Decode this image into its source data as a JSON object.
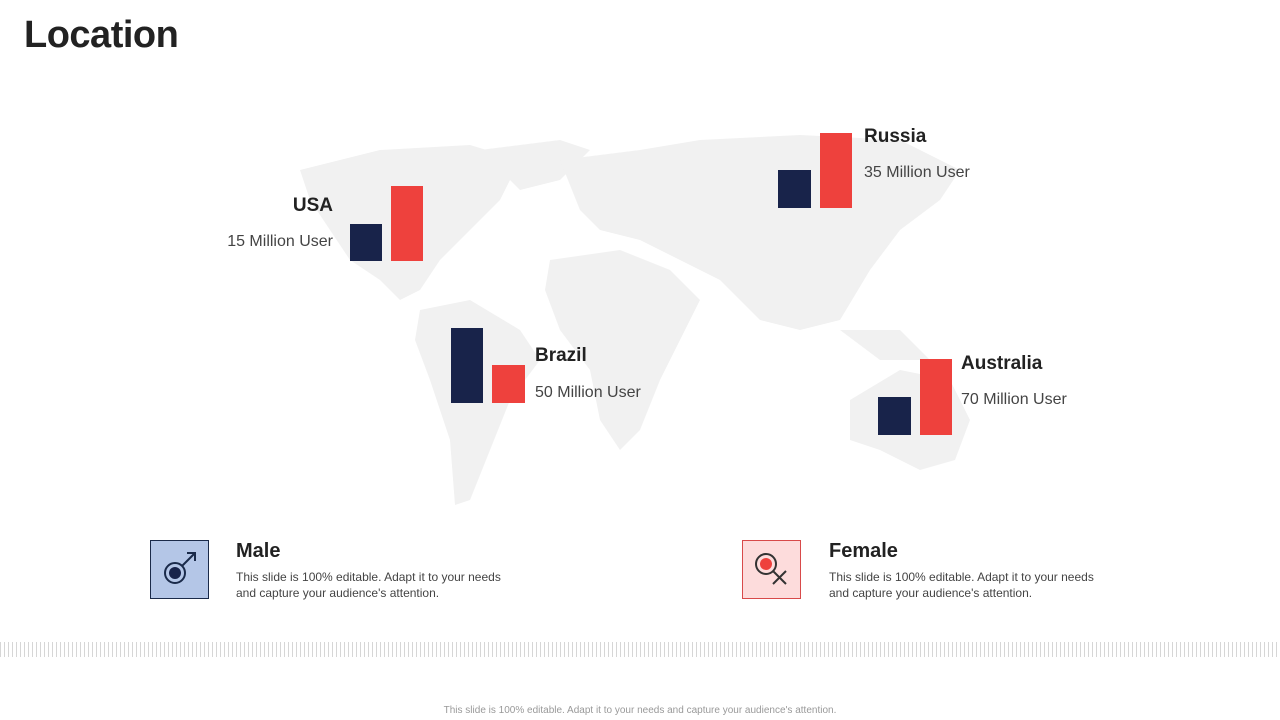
{
  "header": {
    "title": "Location"
  },
  "locations": [
    {
      "name": "USA",
      "users": "15 Million User"
    },
    {
      "name": "Russia",
      "users": "35 Million User"
    },
    {
      "name": "Brazil",
      "users": "50 Million User"
    },
    {
      "name": "Australia",
      "users": "70 Million User"
    }
  ],
  "legend": [
    {
      "label": "Male",
      "text": "This slide is 100% editable. Adapt it to your needs and capture your audience's attention."
    },
    {
      "label": "Female",
      "text": "This slide is 100% editable. Adapt it to your needs and capture your audience's attention."
    }
  ],
  "footer": "This slide is 100% editable. Adapt it to your needs and capture your audience's attention."
}
